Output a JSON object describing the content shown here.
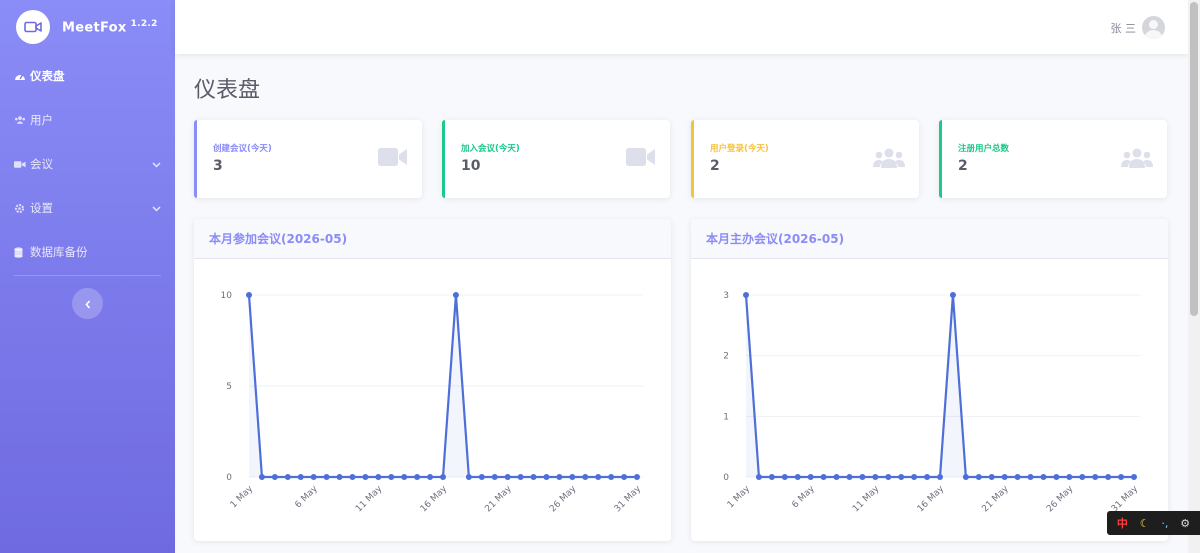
{
  "app": {
    "name": "MeetFox",
    "version": "1.2.2"
  },
  "sidebar": {
    "items": [
      {
        "label": "仪表盘",
        "icon": "dashboard-icon",
        "active": true
      },
      {
        "label": "用户",
        "icon": "users-icon"
      },
      {
        "label": "会议",
        "icon": "video-icon",
        "expandable": true
      },
      {
        "label": "设置",
        "icon": "gear-icon",
        "expandable": true
      },
      {
        "label": "数据库备份",
        "icon": "database-icon"
      }
    ]
  },
  "topbar": {
    "user_name": "张 三"
  },
  "page": {
    "title": "仪表盘"
  },
  "cards": [
    {
      "label": "创建会议(今天)",
      "value": "3",
      "color": "#8a8cf7",
      "icon": "video-camera-icon"
    },
    {
      "label": "加入会议(今天)",
      "value": "10",
      "color": "#1cc88a",
      "icon": "video-camera-icon"
    },
    {
      "label": "用户登录(今天)",
      "value": "2",
      "color": "#f6c23e",
      "icon": "users-icon"
    },
    {
      "label": "注册用户总数",
      "value": "2",
      "color": "#1cc88a",
      "icon": "users-icon"
    }
  ],
  "chart_data": [
    {
      "type": "area",
      "title": "本月参加会议(2026-05)",
      "x": [
        "1 May",
        "2 May",
        "3 May",
        "4 May",
        "5 May",
        "6 May",
        "7 May",
        "8 May",
        "9 May",
        "10 May",
        "11 May",
        "12 May",
        "13 May",
        "14 May",
        "15 May",
        "16 May",
        "17 May",
        "18 May",
        "19 May",
        "20 May",
        "21 May",
        "22 May",
        "23 May",
        "24 May",
        "25 May",
        "26 May",
        "27 May",
        "28 May",
        "29 May",
        "30 May",
        "31 May"
      ],
      "x_tick_labels": [
        "1 May",
        "6 May",
        "11 May",
        "16 May",
        "21 May",
        "26 May",
        "31 May"
      ],
      "values": [
        10,
        0,
        0,
        0,
        0,
        0,
        0,
        0,
        0,
        0,
        0,
        0,
        0,
        0,
        0,
        0,
        10,
        0,
        0,
        0,
        0,
        0,
        0,
        0,
        0,
        0,
        0,
        0,
        0,
        0,
        0
      ],
      "y_ticks": [
        0,
        5,
        10
      ],
      "ylim": [
        0,
        10
      ],
      "color": "#4e6fd8"
    },
    {
      "type": "area",
      "title": "本月主办会议(2026-05)",
      "x": [
        "1 May",
        "2 May",
        "3 May",
        "4 May",
        "5 May",
        "6 May",
        "7 May",
        "8 May",
        "9 May",
        "10 May",
        "11 May",
        "12 May",
        "13 May",
        "14 May",
        "15 May",
        "16 May",
        "17 May",
        "18 May",
        "19 May",
        "20 May",
        "21 May",
        "22 May",
        "23 May",
        "24 May",
        "25 May",
        "26 May",
        "27 May",
        "28 May",
        "29 May",
        "30 May",
        "31 May"
      ],
      "x_tick_labels": [
        "1 May",
        "6 May",
        "11 May",
        "16 May",
        "21 May",
        "26 May",
        "31 May"
      ],
      "values": [
        3,
        0,
        0,
        0,
        0,
        0,
        0,
        0,
        0,
        0,
        0,
        0,
        0,
        0,
        0,
        0,
        3,
        0,
        0,
        0,
        0,
        0,
        0,
        0,
        0,
        0,
        0,
        0,
        0,
        0,
        0
      ],
      "y_ticks": [
        0,
        1,
        2,
        3
      ],
      "ylim": [
        0,
        3
      ],
      "color": "#4e6fd8"
    }
  ],
  "float_tools": {
    "ime": "中",
    "moon": "☾",
    "punct": "·,",
    "gear": "⚙"
  }
}
